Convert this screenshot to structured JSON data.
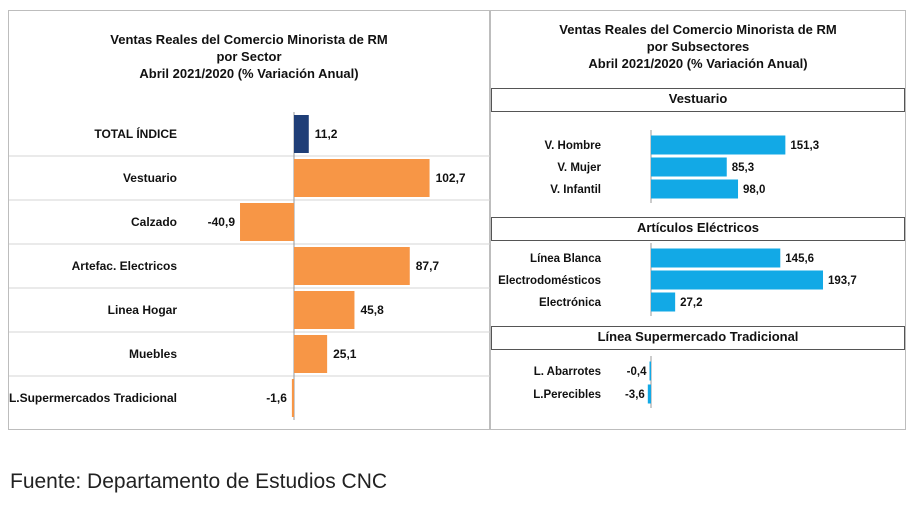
{
  "left": {
    "title": [
      "Ventas Reales del Comercio Minorista de RM",
      "por Sector",
      "Abril 2021/2020 (% Variación Anual)"
    ]
  },
  "right": {
    "title": [
      "Ventas Reales del Comercio Minorista de RM",
      "por Subsectores",
      "Abril 2021/2020 (% Variación Anual)"
    ],
    "sections": [
      "Vestuario",
      "Artículos Eléctricos",
      "Línea Supermercado Tradicional"
    ]
  },
  "source": "Fuente: Departamento de Estudios CNC",
  "colors": {
    "total": "#1f3e77",
    "sector": "#f79646",
    "subsector": "#12a9e6"
  },
  "chart_data": [
    {
      "type": "bar",
      "orientation": "horizontal",
      "title": "Ventas Reales del Comercio Minorista de RM por Sector Abril 2021/2020 (% Variación Anual)",
      "categories": [
        "TOTAL ÍNDICE",
        "Vestuario",
        "Calzado",
        "Artefac. Electricos",
        "Linea Hogar",
        "Muebles",
        "L.Supermercados Tradicional"
      ],
      "values": [
        11.2,
        102.7,
        -40.9,
        87.7,
        45.8,
        25.1,
        -1.6
      ],
      "labels": [
        "11,2",
        "102,7",
        "-40,9",
        "87,7",
        "45,8",
        "25,1",
        "-1,6"
      ],
      "grid": false
    },
    {
      "type": "bar",
      "orientation": "horizontal",
      "title": "Ventas Reales del Comercio Minorista de RM por Subsectores Abril 2021/2020 (% Variación Anual)",
      "groups": [
        {
          "name": "Vestuario",
          "categories": [
            "V. Hombre",
            "V. Mujer",
            "V. Infantil"
          ],
          "values": [
            151.3,
            85.3,
            98.0
          ],
          "labels": [
            "151,3",
            "85,3",
            "98,0"
          ]
        },
        {
          "name": "Artículos Eléctricos",
          "categories": [
            "Línea Blanca",
            "Electrodomésticos",
            "Electrónica"
          ],
          "values": [
            145.6,
            193.7,
            27.2
          ],
          "labels": [
            "145,6",
            "193,7",
            "27,2"
          ]
        },
        {
          "name": "Línea Supermercado Tradicional",
          "categories": [
            "L. Abarrotes",
            "L.Perecibles"
          ],
          "values": [
            -0.4,
            -3.6
          ],
          "labels": [
            "-0,4",
            "-3,6"
          ]
        }
      ],
      "grid": false
    }
  ]
}
